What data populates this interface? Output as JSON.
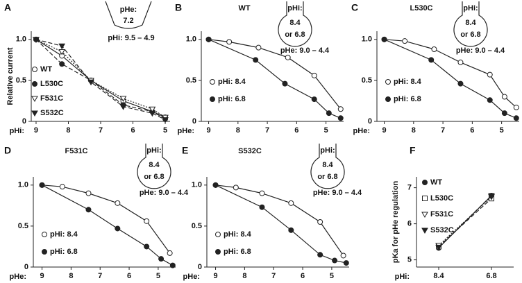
{
  "chart_data": [
    {
      "type": "scatter",
      "label": "A",
      "xlabel": "pHi:",
      "ylabel": "Relative current",
      "inset": [
        "pHe:",
        "7.2",
        "pHi: 9.5 – 4.9"
      ],
      "inset_shape": "funnel",
      "x": [
        9,
        8.2,
        7.3,
        6.3,
        5.4,
        5
      ],
      "xlim": [
        9.15,
        4.85
      ],
      "xticks": [
        9,
        8,
        7,
        6,
        5
      ],
      "ylim": [
        0,
        1.1
      ],
      "yticks": [
        0,
        0.5,
        {
          "value": 1,
          "label": "1.0"
        }
      ],
      "series": [
        {
          "name": "WT",
          "marker": "circle-open",
          "color": "#222",
          "line_style": "solid",
          "values": [
            1,
            0.8,
            0.5,
            0.25,
            0.12,
            0.05
          ]
        },
        {
          "name": "L530C",
          "marker": "circle-filled",
          "color": "#222",
          "line_style": "dashed",
          "values": [
            1,
            0.7,
            0.5,
            0.2,
            0.12,
            0.03
          ]
        },
        {
          "name": "F531C",
          "marker": "triangle-open",
          "color": "#222",
          "line_style": "dotted",
          "values": [
            1,
            0.85,
            0.5,
            0.28,
            0.15,
            0.05
          ]
        },
        {
          "name": "S532C",
          "marker": "triangle-filled",
          "color": "#222",
          "line_style": "dashed",
          "values": [
            1,
            0.92,
            0.48,
            0.18,
            0.1,
            0.02
          ]
        }
      ]
    },
    {
      "type": "scatter",
      "label": "B",
      "title": "WT",
      "xlabel": "pHe:",
      "inset": [
        "pHi:",
        "8.4",
        "or 6.8",
        "pHe: 9.0 – 4.4"
      ],
      "inset_shape": "pipette",
      "xlim": [
        9.25,
        4.4
      ],
      "xticks": [
        9,
        8,
        7,
        6,
        5
      ],
      "ylim": [
        0,
        1.1
      ],
      "yticks": [
        0,
        0.5,
        {
          "value": 1,
          "label": "1.0"
        }
      ],
      "series": [
        {
          "name": "pHi: 8.4",
          "marker": "circle-open",
          "color": "#222",
          "line_style": "solid",
          "x": [
            9,
            8.3,
            7.3,
            6.3,
            5.4,
            4.5
          ],
          "values": [
            1,
            0.97,
            0.9,
            0.78,
            0.56,
            0.15
          ]
        },
        {
          "name": "pHi: 6.8",
          "marker": "circle-filled",
          "color": "#222",
          "line_style": "solid",
          "x": [
            9,
            7.4,
            6.4,
            5.4,
            4.9,
            4.5
          ],
          "values": [
            1,
            0.75,
            0.46,
            0.27,
            0.1,
            0.04
          ]
        }
      ]
    },
    {
      "type": "scatter",
      "label": "C",
      "title": "L530C",
      "xlabel": "pHe:",
      "inset": [
        "pHi:",
        "8.4",
        "or 6.8",
        "pHe: 9.0 – 4.4"
      ],
      "inset_shape": "pipette",
      "xlim": [
        9.25,
        4.4
      ],
      "xticks": [
        9,
        8,
        7,
        6,
        5
      ],
      "ylim": [
        0,
        1.1
      ],
      "yticks": [
        0,
        0.5,
        {
          "value": 1,
          "label": "1.0"
        }
      ],
      "series": [
        {
          "name": "pHi: 8.4",
          "marker": "circle-open",
          "color": "#222",
          "line_style": "solid",
          "x": [
            9,
            8.3,
            7.3,
            6.4,
            5.4,
            4.9,
            4.5
          ],
          "values": [
            1,
            0.98,
            0.88,
            0.72,
            0.57,
            0.3,
            0.17
          ]
        },
        {
          "name": "pHi: 6.8",
          "marker": "circle-filled",
          "color": "#222",
          "line_style": "solid",
          "x": [
            9,
            7.4,
            6.4,
            5.4,
            4.9,
            4.5
          ],
          "values": [
            1,
            0.75,
            0.46,
            0.26,
            0.1,
            0.04
          ]
        }
      ]
    },
    {
      "type": "scatter",
      "label": "D",
      "title": "F531C",
      "xlabel": "pHe:",
      "inset": [
        "pHi:",
        "8.4",
        "or 6.8",
        "pHe: 9.0 – 4.4"
      ],
      "inset_shape": "pipette",
      "xlim": [
        9.3,
        4.4
      ],
      "xticks": [
        9,
        8,
        7,
        6,
        5
      ],
      "ylim": [
        0,
        1.1
      ],
      "yticks": [
        0,
        0.5,
        {
          "value": 1,
          "label": "1.0"
        }
      ],
      "series": [
        {
          "name": "pHi: 8.4",
          "marker": "circle-open",
          "color": "#222",
          "line_style": "solid",
          "x": [
            9,
            8.3,
            7.4,
            6.4,
            5.4,
            4.6
          ],
          "values": [
            1,
            0.98,
            0.9,
            0.78,
            0.56,
            0.17
          ]
        },
        {
          "name": "pHi: 6.8",
          "marker": "circle-filled",
          "color": "#222",
          "line_style": "solid",
          "x": [
            9,
            7.4,
            6.4,
            5.4,
            4.9,
            4.5
          ],
          "values": [
            1,
            0.7,
            0.47,
            0.25,
            0.1,
            0.02
          ]
        }
      ]
    },
    {
      "type": "scatter",
      "label": "E",
      "title": "S532C",
      "xlabel": "pHe:",
      "inset": [
        "pHi:",
        "8.4",
        "or 6.8",
        "pHe: 9.0 – 4.4"
      ],
      "inset_shape": "pipette",
      "xlim": [
        9.3,
        4.4
      ],
      "xticks": [
        9,
        8,
        7,
        6,
        5
      ],
      "ylim": [
        0,
        1.1
      ],
      "yticks": [
        0,
        0.5,
        {
          "value": 1,
          "label": "1.0"
        }
      ],
      "series": [
        {
          "name": "pHi: 8.4",
          "marker": "circle-open",
          "color": "#222",
          "line_style": "solid",
          "x": [
            9,
            8.3,
            7.4,
            6.4,
            5.4,
            4.6
          ],
          "values": [
            1,
            0.97,
            0.9,
            0.78,
            0.55,
            0.14
          ]
        },
        {
          "name": "pHi: 6.8",
          "marker": "circle-filled",
          "color": "#222",
          "line_style": "solid",
          "x": [
            9,
            7.4,
            6.4,
            5.4,
            4.9,
            4.5
          ],
          "values": [
            1,
            0.73,
            0.45,
            0.15,
            0.08,
            0.05
          ]
        }
      ]
    },
    {
      "type": "line",
      "label": "F",
      "xlabel": "pHi:",
      "ylabel": "pKa for pHe regulation",
      "categories": [
        "8.4",
        "6.8"
      ],
      "ylim": [
        4.8,
        7.3
      ],
      "yticks": [
        5,
        6,
        7
      ],
      "series": [
        {
          "name": "WT",
          "marker": "circle-filled",
          "color": "#222",
          "line_style": "solid",
          "values": [
            5.33,
            6.78
          ]
        },
        {
          "name": "L530C",
          "marker": "square-open",
          "color": "#222",
          "line_style": "dashed",
          "values": [
            5.37,
            6.7
          ]
        },
        {
          "name": "F531C",
          "marker": "triangle-open",
          "color": "#222",
          "line_style": "dotted",
          "values": [
            5.4,
            6.75
          ]
        },
        {
          "name": "S532C",
          "marker": "triangle-filled",
          "color": "#222",
          "line_style": "dashed",
          "values": [
            5.35,
            6.78
          ]
        }
      ]
    }
  ]
}
